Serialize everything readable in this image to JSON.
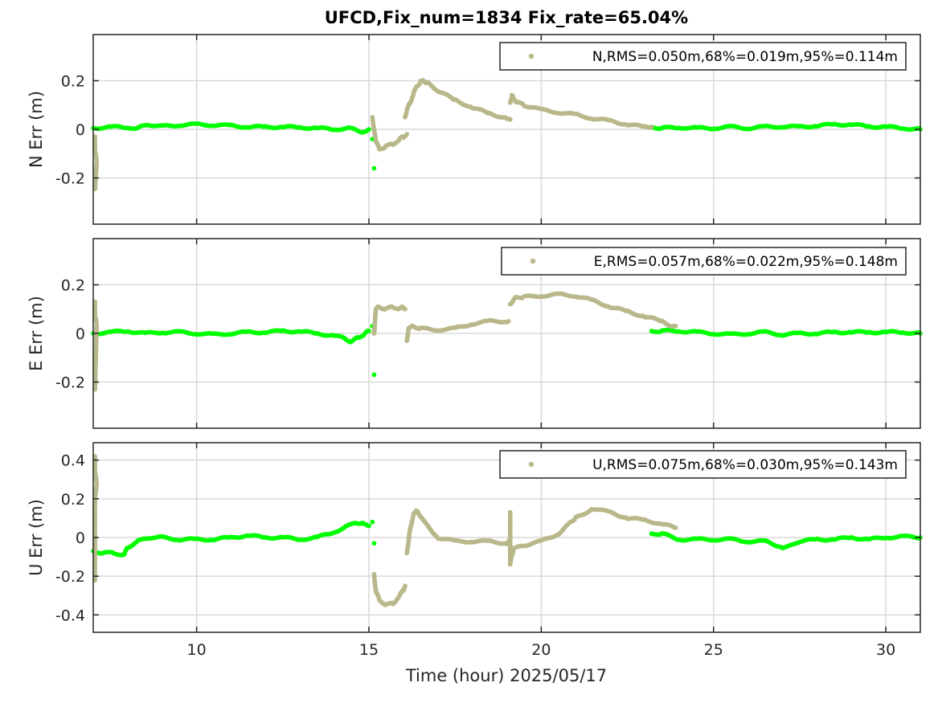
{
  "chart_data": {
    "type": "scatter",
    "title": "UFCD,Fix_num=1834 Fix_rate=65.04%",
    "xlabel": "Time (hour)  2025/05/17",
    "xlim": [
      7,
      31
    ],
    "xticks": [
      10,
      15,
      20,
      25,
      30
    ],
    "xtick_labels": [
      "10",
      "15",
      "20",
      "25",
      "30"
    ],
    "grid": true,
    "colors": {
      "fix": "#00ff00",
      "float": "#b8b88a"
    },
    "panels": [
      {
        "id": "n",
        "ylabel": "N Err (m)",
        "ylim": [
          -0.39,
          0.39
        ],
        "yticks": [
          -0.2,
          0,
          0.2
        ],
        "ytick_labels": [
          "-0.2",
          "0",
          "0.2"
        ],
        "legend": "N,RMS=0.050m,68%=0.019m,95%=0.114m",
        "fix_segments": [
          {
            "x": [
              7.0,
              7.5,
              8.0,
              8.3,
              8.6,
              9.0,
              9.5,
              10.0,
              10.5,
              11.0,
              11.5,
              12.0,
              12.5,
              13.0,
              13.5,
              14.0,
              14.4,
              14.8,
              15.0
            ],
            "y": [
              0.005,
              0.01,
              0.008,
              0.005,
              0.02,
              0.012,
              0.018,
              0.02,
              0.018,
              0.015,
              0.01,
              0.01,
              0.01,
              0.008,
              0.005,
              0.0,
              0.005,
              -0.01,
              0.0
            ]
          },
          {
            "x": [
              15.15
            ],
            "y": [
              -0.16
            ]
          },
          {
            "x": [
              15.1
            ],
            "y": [
              -0.04
            ]
          },
          {
            "x": [
              23.2,
              23.5,
              24.0,
              24.5,
              25.0,
              25.5,
              26.0,
              26.5,
              27.0,
              27.5,
              28.0,
              28.5,
              29.0,
              29.5,
              30.0,
              30.5,
              31.0
            ],
            "y": [
              0.01,
              0.005,
              0.008,
              0.005,
              0.005,
              0.01,
              0.005,
              0.01,
              0.012,
              0.01,
              0.015,
              0.02,
              0.02,
              0.012,
              0.01,
              0.005,
              0.0
            ]
          }
        ],
        "float_segments": [
          {
            "x": [
              7.05,
              7.05,
              7.1,
              7.05
            ],
            "y": [
              -0.03,
              -0.09,
              -0.13,
              -0.245
            ]
          },
          {
            "x": [
              15.1,
              15.2,
              15.3,
              15.5,
              15.7,
              15.9,
              16.0,
              16.1
            ],
            "y": [
              0.05,
              -0.05,
              -0.08,
              -0.07,
              -0.06,
              -0.04,
              -0.03,
              -0.02
            ]
          },
          {
            "x": [
              16.05,
              16.1,
              16.2,
              16.3,
              16.4,
              16.5,
              16.6,
              16.7,
              17.0,
              17.5,
              18.0,
              18.5,
              19.0,
              19.1
            ],
            "y": [
              0.05,
              0.08,
              0.11,
              0.15,
              0.18,
              0.195,
              0.2,
              0.19,
              0.16,
              0.12,
              0.09,
              0.065,
              0.045,
              0.04
            ]
          },
          {
            "x": [
              19.1,
              19.15,
              19.2,
              19.3,
              19.5,
              20.0,
              20.5,
              21.0,
              21.5,
              22.0,
              22.5,
              23.0,
              23.2
            ],
            "y": [
              0.11,
              0.14,
              0.13,
              0.11,
              0.1,
              0.08,
              0.07,
              0.06,
              0.045,
              0.035,
              0.02,
              0.01,
              0.01
            ]
          }
        ]
      },
      {
        "id": "e",
        "ylabel": "E Err (m)",
        "ylim": [
          -0.39,
          0.39
        ],
        "yticks": [
          -0.2,
          0,
          0.2
        ],
        "ytick_labels": [
          "-0.2",
          "0",
          "0.2"
        ],
        "legend": "E,RMS=0.057m,68%=0.022m,95%=0.148m",
        "fix_segments": [
          {
            "x": [
              7.0,
              7.5,
              8.0,
              8.5,
              9.0,
              9.5,
              10.0,
              10.5,
              11.0,
              11.5,
              12.0,
              12.5,
              13.0,
              13.5,
              14.0,
              14.3,
              14.5,
              14.7,
              14.9,
              15.0
            ],
            "y": [
              0.0,
              0.005,
              0.01,
              0.0,
              0.005,
              0.005,
              0.0,
              -0.005,
              0.0,
              0.005,
              0.005,
              0.01,
              0.008,
              0.0,
              -0.01,
              -0.02,
              -0.035,
              -0.015,
              0.0,
              0.01
            ]
          },
          {
            "x": [
              15.15
            ],
            "y": [
              -0.17
            ]
          },
          {
            "x": [
              15.1
            ],
            "y": [
              0.03
            ]
          },
          {
            "x": [
              23.2,
              23.5,
              24.0,
              24.5,
              25.0,
              25.5,
              26.0,
              26.5,
              27.0,
              27.5,
              28.0,
              28.5,
              29.0,
              29.5,
              30.0,
              30.5,
              31.0
            ],
            "y": [
              0.01,
              0.01,
              0.01,
              0.005,
              0.0,
              -0.005,
              0.0,
              0.005,
              -0.005,
              0.0,
              0.0,
              0.005,
              0.005,
              0.005,
              0.005,
              0.005,
              0.0
            ]
          }
        ],
        "float_segments": [
          {
            "x": [
              7.05,
              7.05,
              7.1,
              7.05
            ],
            "y": [
              0.13,
              0.07,
              0.04,
              -0.23
            ]
          },
          {
            "x": [
              15.15,
              15.2,
              15.3,
              15.5,
              15.7,
              15.9,
              16.0,
              16.05
            ],
            "y": [
              0.0,
              0.1,
              0.11,
              0.1,
              0.11,
              0.1,
              0.11,
              0.1
            ]
          },
          {
            "x": [
              16.1,
              16.15,
              16.3,
              16.5,
              17.0,
              17.5,
              18.0,
              18.5,
              19.0,
              19.05
            ],
            "y": [
              -0.03,
              0.02,
              0.03,
              0.02,
              0.015,
              0.02,
              0.04,
              0.05,
              0.05,
              0.05
            ]
          },
          {
            "x": [
              19.1,
              19.2,
              19.3,
              19.5,
              20.0,
              20.5,
              21.0,
              21.5,
              22.0,
              22.5,
              23.0,
              23.5,
              23.8,
              23.9
            ],
            "y": [
              0.12,
              0.14,
              0.15,
              0.15,
              0.155,
              0.16,
              0.155,
              0.135,
              0.11,
              0.09,
              0.07,
              0.05,
              0.03,
              0.03
            ]
          }
        ]
      },
      {
        "id": "u",
        "ylabel": "U Err (m)",
        "ylim": [
          -0.49,
          0.49
        ],
        "yticks": [
          -0.4,
          -0.2,
          0,
          0.2,
          0.4
        ],
        "ytick_labels": [
          "-0.4",
          "-0.2",
          "0",
          "0.2",
          "0.4"
        ],
        "legend": "U,RMS=0.075m,68%=0.030m,95%=0.143m",
        "fix_segments": [
          {
            "x": [
              7.0,
              7.3,
              7.6,
              7.9,
              8.0,
              8.3,
              8.6,
              9.0,
              9.5,
              10.0,
              10.5,
              11.0,
              11.5,
              12.0,
              12.5,
              13.0,
              13.5,
              14.0,
              14.3,
              14.6,
              14.8,
              15.0
            ],
            "y": [
              -0.07,
              -0.08,
              -0.08,
              -0.09,
              -0.05,
              -0.02,
              0.0,
              0.0,
              -0.01,
              -0.01,
              -0.01,
              0.0,
              0.01,
              0.0,
              0.0,
              -0.01,
              0.0,
              0.03,
              0.05,
              0.08,
              0.07,
              0.06
            ]
          },
          {
            "x": [
              15.15
            ],
            "y": [
              -0.03
            ]
          },
          {
            "x": [
              15.1
            ],
            "y": [
              0.08
            ]
          },
          {
            "x": [
              23.2,
              23.5,
              24.0,
              24.5,
              25.0,
              25.5,
              26.0,
              26.5,
              27.0,
              27.3,
              27.5,
              28.0,
              28.5,
              29.0,
              29.5,
              30.0,
              30.5,
              31.0
            ],
            "y": [
              0.02,
              0.02,
              -0.01,
              -0.01,
              -0.01,
              -0.01,
              -0.02,
              -0.02,
              -0.05,
              -0.04,
              -0.02,
              -0.01,
              -0.01,
              0.0,
              -0.01,
              0.0,
              0.005,
              0.0
            ]
          }
        ],
        "float_segments": [
          {
            "x": [
              7.05,
              7.05,
              7.1,
              7.05,
              7.05,
              7.05
            ],
            "y": [
              0.42,
              0.34,
              0.28,
              0.2,
              -0.05,
              -0.22
            ]
          },
          {
            "x": [
              15.15,
              15.2,
              15.3,
              15.5,
              15.7,
              15.9,
              16.0,
              16.05
            ],
            "y": [
              -0.19,
              -0.28,
              -0.32,
              -0.35,
              -0.34,
              -0.3,
              -0.27,
              -0.25
            ]
          },
          {
            "x": [
              16.1,
              16.15,
              16.2,
              16.3,
              16.4,
              16.6,
              17.0,
              17.5,
              18.0,
              18.5,
              19.0,
              19.05
            ],
            "y": [
              -0.08,
              -0.02,
              0.05,
              0.12,
              0.14,
              0.08,
              0.0,
              -0.02,
              -0.02,
              -0.02,
              -0.03,
              -0.02
            ]
          },
          {
            "x": [
              19.1,
              19.1,
              19.15,
              19.2,
              19.5,
              20.0,
              20.5,
              21.0,
              21.5,
              22.0,
              22.5,
              23.0,
              23.5,
              23.9
            ],
            "y": [
              0.13,
              -0.14,
              -0.09,
              -0.06,
              -0.04,
              -0.02,
              0.02,
              0.1,
              0.15,
              0.13,
              0.1,
              0.09,
              0.07,
              0.05
            ]
          }
        ]
      }
    ]
  }
}
